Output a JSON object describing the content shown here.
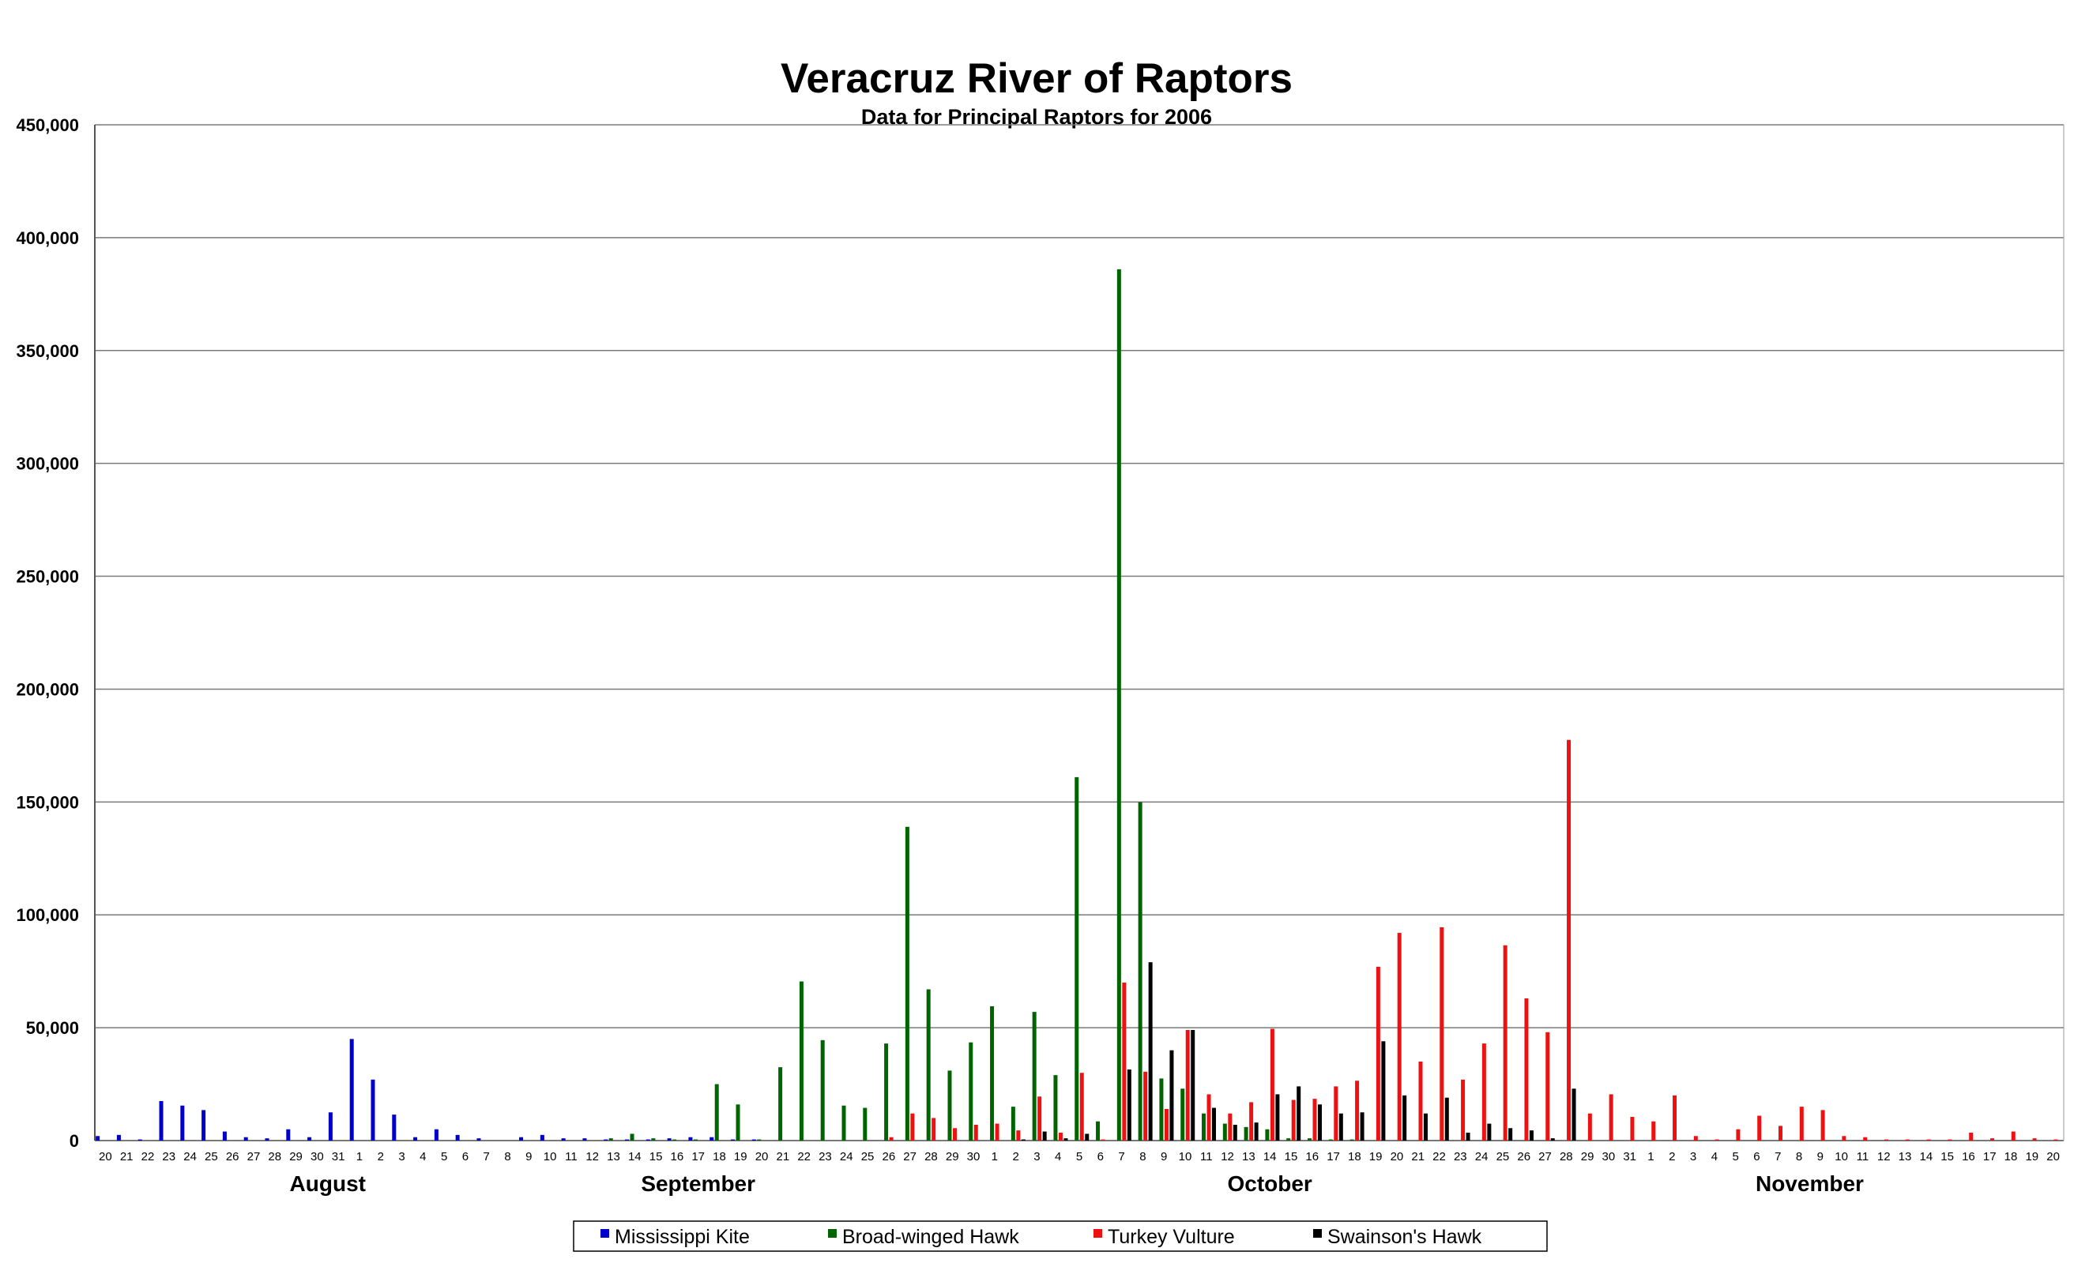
{
  "chart_data": {
    "type": "bar",
    "title": "Veracruz River of Raptors",
    "subtitle": "Data for Principal Raptors for 2006",
    "xlabel": "",
    "ylabel": "",
    "ylim": [
      0,
      450000
    ],
    "yticks": [
      0,
      50000,
      100000,
      150000,
      200000,
      250000,
      300000,
      350000,
      400000,
      450000
    ],
    "ytick_labels": [
      "0",
      "50,000",
      "100,000",
      "150,000",
      "200,000",
      "250,000",
      "300,000",
      "350,000",
      "400,000",
      "450,000"
    ],
    "grid": true,
    "legend_position": "bottom",
    "months": [
      {
        "label": "August",
        "center_index": 10.5
      },
      {
        "label": "September",
        "center_index": 28
      },
      {
        "label": "October",
        "center_index": 55
      },
      {
        "label": "November",
        "center_index": 80.5
      }
    ],
    "categories": [
      "20",
      "21",
      "22",
      "23",
      "24",
      "25",
      "26",
      "27",
      "28",
      "29",
      "30",
      "31",
      "1",
      "2",
      "3",
      "4",
      "5",
      "6",
      "7",
      "8",
      "9",
      "10",
      "11",
      "12",
      "13",
      "14",
      "15",
      "16",
      "17",
      "18",
      "19",
      "20",
      "21",
      "22",
      "23",
      "24",
      "25",
      "26",
      "27",
      "28",
      "29",
      "30",
      "1",
      "2",
      "3",
      "4",
      "5",
      "6",
      "7",
      "8",
      "9",
      "10",
      "11",
      "12",
      "13",
      "14",
      "15",
      "16",
      "17",
      "18",
      "19",
      "20",
      "21",
      "22",
      "23",
      "24",
      "25",
      "26",
      "27",
      "28",
      "29",
      "30",
      "31",
      "1",
      "2",
      "3",
      "4",
      "5",
      "6",
      "7",
      "8",
      "9",
      "10",
      "11",
      "12",
      "13",
      "14",
      "15",
      "16",
      "17",
      "18",
      "19",
      "20"
    ],
    "series": [
      {
        "name": "Mississippi Kite",
        "color": "#0000cc",
        "values": [
          2000,
          2500,
          500,
          17500,
          15500,
          13500,
          4000,
          1500,
          1000,
          5000,
          1500,
          12500,
          45000,
          27000,
          11500,
          1500,
          5000,
          2500,
          1000,
          0,
          1500,
          2500,
          1000,
          1000,
          500,
          500,
          500,
          1000,
          1500,
          1500,
          500,
          500,
          0,
          0,
          0,
          0,
          0,
          0,
          0,
          0,
          0,
          0,
          0,
          0,
          0,
          0,
          0,
          0,
          0,
          0,
          0,
          0,
          0,
          0,
          0,
          0,
          0,
          0,
          0,
          0,
          0,
          0,
          0,
          0,
          0,
          0,
          0,
          0,
          0,
          0,
          0,
          0,
          0,
          0,
          0,
          0,
          0,
          0,
          0,
          0,
          0,
          0,
          0,
          0,
          0,
          0,
          0,
          0,
          0,
          0,
          0,
          0,
          0
        ]
      },
      {
        "name": "Broad-winged Hawk",
        "color": "#006400",
        "values": [
          0,
          0,
          0,
          0,
          0,
          0,
          0,
          0,
          0,
          0,
          0,
          0,
          0,
          0,
          0,
          0,
          0,
          0,
          0,
          0,
          0,
          0,
          0,
          0,
          1000,
          3000,
          1000,
          500,
          500,
          25000,
          16000,
          500,
          32500,
          70500,
          44500,
          15500,
          14500,
          43000,
          139000,
          67000,
          31000,
          43500,
          59500,
          15000,
          57000,
          29000,
          161000,
          8500,
          386000,
          150000,
          27500,
          23000,
          12000,
          7500,
          6000,
          5000,
          1000,
          1000,
          500,
          500,
          0,
          0,
          0,
          0,
          0,
          0,
          0,
          0,
          0,
          0,
          0,
          0,
          0,
          0,
          0,
          0,
          0,
          0,
          0,
          0,
          0,
          0,
          0,
          0,
          0,
          0,
          0,
          0,
          0,
          0,
          0,
          0,
          0
        ]
      },
      {
        "name": "Turkey Vulture",
        "color": "#ee1111",
        "values": [
          0,
          0,
          0,
          0,
          0,
          0,
          0,
          0,
          0,
          0,
          0,
          0,
          0,
          0,
          0,
          0,
          0,
          0,
          0,
          0,
          0,
          0,
          0,
          0,
          0,
          0,
          0,
          0,
          0,
          0,
          0,
          0,
          0,
          0,
          0,
          0,
          0,
          1500,
          12000,
          10000,
          5500,
          7000,
          7500,
          4500,
          19500,
          3500,
          30000,
          500,
          70000,
          30500,
          14000,
          49000,
          20500,
          12000,
          17000,
          49500,
          18000,
          18500,
          24000,
          26500,
          77000,
          92000,
          35000,
          94500,
          27000,
          43000,
          86500,
          63000,
          48000,
          177500,
          12000,
          20500,
          10500,
          8500,
          20000,
          2000,
          500,
          5000,
          11000,
          6500,
          15000,
          13500,
          2000,
          1500,
          500,
          500,
          500,
          500,
          3500,
          1000,
          4000,
          1000,
          500
        ]
      },
      {
        "name": "Swainson's Hawk",
        "color": "#000000",
        "values": [
          0,
          0,
          0,
          0,
          0,
          0,
          0,
          0,
          0,
          0,
          0,
          0,
          0,
          0,
          0,
          0,
          0,
          0,
          0,
          0,
          0,
          0,
          0,
          0,
          0,
          0,
          0,
          0,
          0,
          0,
          0,
          0,
          0,
          0,
          0,
          0,
          0,
          0,
          0,
          0,
          0,
          0,
          0,
          500,
          4000,
          1000,
          3000,
          0,
          31500,
          79000,
          40000,
          49000,
          14500,
          7000,
          8000,
          20500,
          24000,
          16000,
          12000,
          12500,
          44000,
          20000,
          12000,
          19000,
          3500,
          7500,
          5500,
          4500,
          1000,
          23000,
          0,
          0,
          0,
          0,
          0,
          0,
          0,
          0,
          0,
          0,
          0,
          0,
          0,
          0,
          0,
          0,
          0,
          0,
          0,
          0,
          0,
          0,
          0
        ]
      }
    ]
  }
}
